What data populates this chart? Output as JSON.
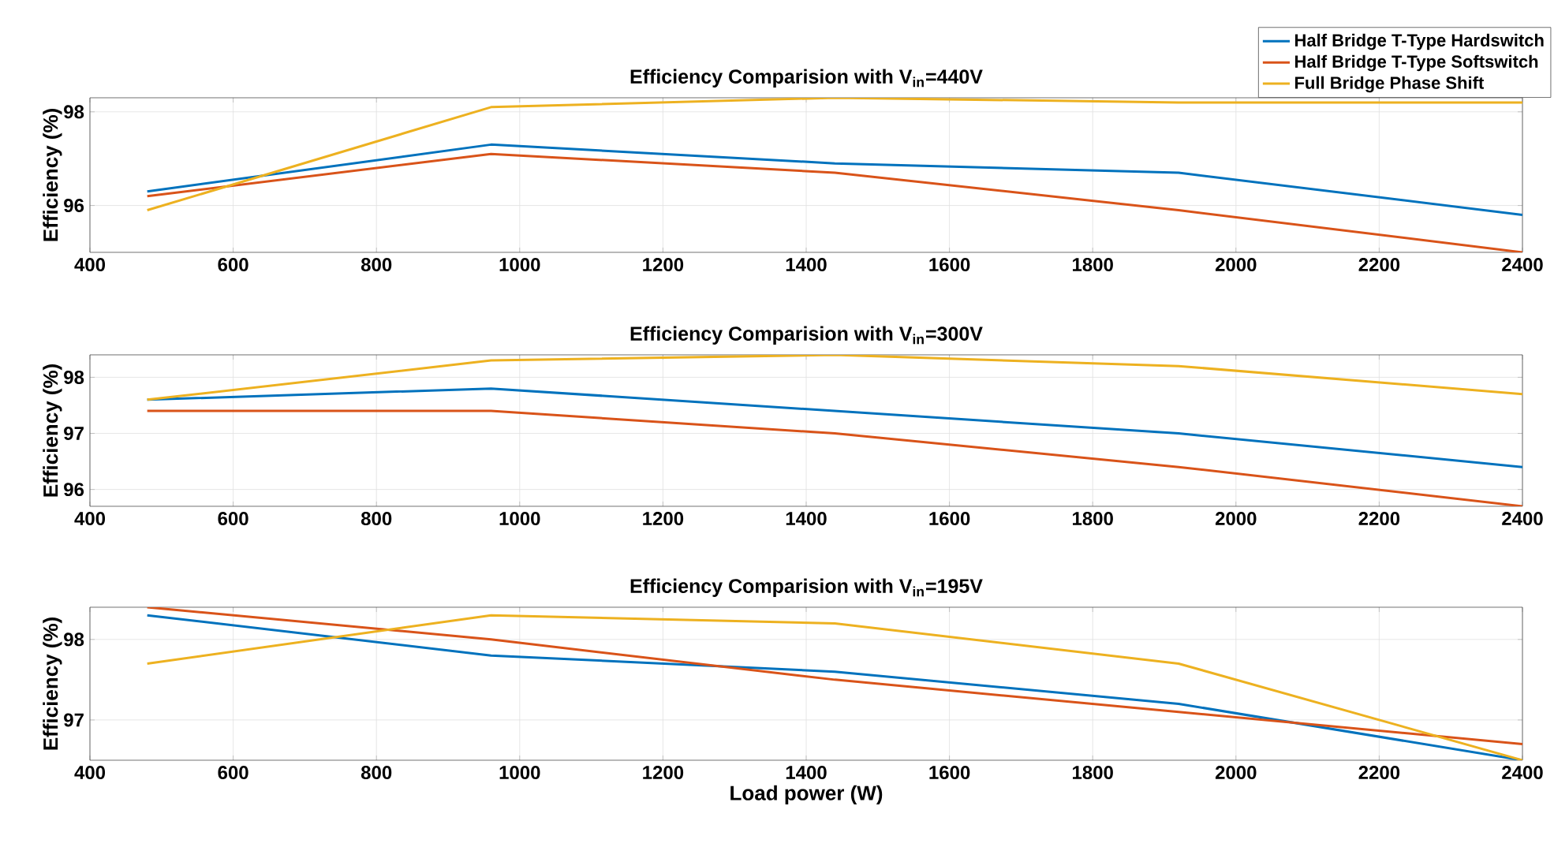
{
  "chart_data": [
    {
      "type": "line",
      "title": "Efficiency Comparision with V$_{in}$=440V",
      "ylabel": "Efficiency (%)",
      "x": [
        480,
        960,
        1440,
        1920,
        2400
      ],
      "xlim": [
        400,
        2400
      ],
      "xticks": [
        400,
        600,
        800,
        1000,
        1200,
        1400,
        1600,
        1800,
        2000,
        2200,
        2400
      ],
      "ylim": [
        95,
        98.3
      ],
      "yticks": [
        96,
        98
      ],
      "grid": true,
      "legend": "top right",
      "marker": "none",
      "line_style": "solid",
      "series": [
        {
          "name": "Half Bridge T-Type Hardswitch",
          "color": "#0072bd",
          "values": [
            96.3,
            97.3,
            96.9,
            96.7,
            95.8
          ]
        },
        {
          "name": "Half Bridge T-Type Softswitch",
          "color": "#d95319",
          "values": [
            96.2,
            97.1,
            96.7,
            95.9,
            95.0
          ]
        },
        {
          "name": "Full Bridge Phase Shift",
          "color": "#edb120",
          "values": [
            95.9,
            98.1,
            98.3,
            98.2,
            98.2
          ]
        }
      ]
    },
    {
      "type": "line",
      "title": "Efficiency Comparision with V$_{in}$=300V",
      "ylabel": "Efficiency (%)",
      "x": [
        480,
        960,
        1440,
        1920,
        2400
      ],
      "xlim": [
        400,
        2400
      ],
      "xticks": [
        400,
        600,
        800,
        1000,
        1200,
        1400,
        1600,
        1800,
        2000,
        2200,
        2400
      ],
      "ylim": [
        95.7,
        98.4
      ],
      "yticks": [
        96,
        97,
        98
      ],
      "grid": true,
      "marker": "none",
      "line_style": "solid",
      "series": [
        {
          "color": "#0072bd",
          "values": [
            97.6,
            97.8,
            97.4,
            97.0,
            96.4
          ]
        },
        {
          "color": "#d95319",
          "values": [
            97.4,
            97.4,
            97.0,
            96.4,
            95.7
          ]
        },
        {
          "color": "#edb120",
          "values": [
            97.6,
            98.3,
            98.4,
            98.2,
            97.7
          ]
        }
      ]
    },
    {
      "type": "line",
      "title": "Efficiency Comparision with V$_{in}$=195V",
      "xlabel": "Load power (W)",
      "ylabel": "Efficiency (%)",
      "x": [
        480,
        960,
        1440,
        1920,
        2400
      ],
      "xlim": [
        400,
        2400
      ],
      "xticks": [
        400,
        600,
        800,
        1000,
        1200,
        1400,
        1600,
        1800,
        2000,
        2200,
        2400
      ],
      "ylim": [
        96.5,
        98.4
      ],
      "yticks": [
        97,
        98
      ],
      "grid": true,
      "marker": "none",
      "line_style": "solid",
      "series": [
        {
          "color": "#0072bd",
          "values": [
            98.3,
            97.8,
            97.6,
            97.2,
            96.5
          ]
        },
        {
          "color": "#d95319",
          "values": [
            98.4,
            98.0,
            97.5,
            97.1,
            96.7
          ]
        },
        {
          "color": "#edb120",
          "values": [
            97.7,
            98.3,
            98.2,
            97.7,
            96.5
          ]
        }
      ]
    }
  ]
}
